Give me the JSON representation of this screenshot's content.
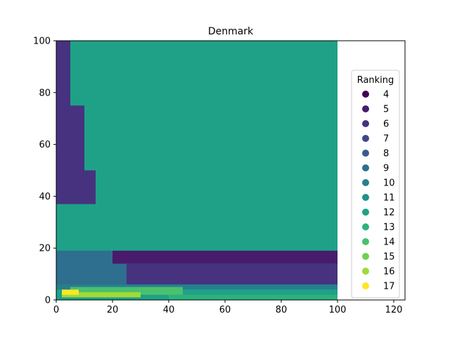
{
  "chart_data": {
    "type": "scatter",
    "title": "Denmark",
    "xlabel": "",
    "ylabel": "",
    "xlim": [
      0,
      124
    ],
    "ylim": [
      0,
      100
    ],
    "xticks": [
      0,
      20,
      40,
      60,
      80,
      100,
      120
    ],
    "yticks": [
      0,
      20,
      40,
      60,
      80,
      100
    ],
    "grid": false,
    "legend": {
      "title": "Ranking",
      "placement": "right",
      "entries": [
        {
          "label": "4",
          "color": "#440154"
        },
        {
          "label": "5",
          "color": "#481b6d"
        },
        {
          "label": "6",
          "color": "#46327e"
        },
        {
          "label": "7",
          "color": "#3f4788"
        },
        {
          "label": "8",
          "color": "#365c8d"
        },
        {
          "label": "9",
          "color": "#2e6e8e"
        },
        {
          "label": "10",
          "color": "#277f8e"
        },
        {
          "label": "11",
          "color": "#21918c"
        },
        {
          "label": "12",
          "color": "#1fa187"
        },
        {
          "label": "13",
          "color": "#2db27d"
        },
        {
          "label": "14",
          "color": "#4ac16d"
        },
        {
          "label": "15",
          "color": "#71cf57"
        },
        {
          "label": "16",
          "color": "#a0da39"
        },
        {
          "label": "17",
          "color": "#fde725"
        }
      ]
    },
    "regions": [
      {
        "ranking": 12,
        "x": [
          0,
          100
        ],
        "y": [
          0,
          100
        ]
      },
      {
        "ranking": 6,
        "x": [
          0,
          5
        ],
        "y": [
          40,
          100
        ]
      },
      {
        "ranking": 6,
        "x": [
          0,
          14
        ],
        "y": [
          37,
          50
        ]
      },
      {
        "ranking": 6,
        "x": [
          0,
          10
        ],
        "y": [
          50,
          75
        ]
      },
      {
        "ranking": 9,
        "x": [
          0,
          100
        ],
        "y": [
          5,
          19
        ]
      },
      {
        "ranking": 5,
        "x": [
          20,
          100
        ],
        "y": [
          14,
          19
        ]
      },
      {
        "ranking": 6,
        "x": [
          25,
          100
        ],
        "y": [
          6,
          14
        ]
      },
      {
        "ranking": 10,
        "x": [
          0,
          100
        ],
        "y": [
          4,
          6
        ]
      },
      {
        "ranking": 12,
        "x": [
          0,
          100
        ],
        "y": [
          2,
          4
        ]
      },
      {
        "ranking": 14,
        "x": [
          5,
          45
        ],
        "y": [
          2,
          5
        ]
      },
      {
        "ranking": 13,
        "x": [
          40,
          100
        ],
        "y": [
          0,
          2
        ]
      },
      {
        "ranking": 16,
        "x": [
          2,
          30
        ],
        "y": [
          1,
          3
        ]
      },
      {
        "ranking": 17,
        "x": [
          2,
          8
        ],
        "y": [
          2,
          4
        ]
      }
    ]
  }
}
